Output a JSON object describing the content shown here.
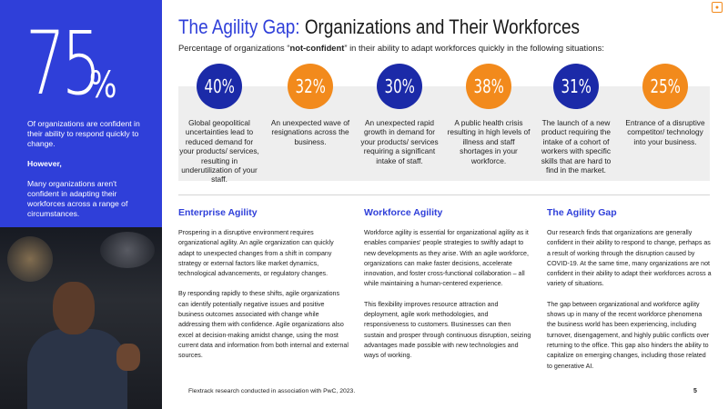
{
  "left": {
    "big_number": "75",
    "big_percent": "%",
    "p1": "Of organizations are confident in their ability to respond quickly to change.",
    "however": "However,",
    "p2": "Many organizations aren't confident in adapting their workforces across a range of circumstances."
  },
  "header": {
    "title_highlight": "The Agility Gap:",
    "title_rest": " Organizations and Their Workforces",
    "subtitle_before": "Percentage of organizations “",
    "subtitle_bold": "not-confident",
    "subtitle_after": "” in their ability to adapt workforces quickly in the following situations:"
  },
  "stats": [
    {
      "value": "40%",
      "color": "#1b2aa8",
      "desc": "Global geopolitical uncertainties lead to reduced demand for your products/ services, resulting in underutilization of your staff."
    },
    {
      "value": "32%",
      "color": "#f28a1c",
      "desc": "An unexpected wave of resignations across the business."
    },
    {
      "value": "30%",
      "color": "#1b2aa8",
      "desc": "An unexpected rapid growth in demand for your products/ services requiring a significant intake of staff."
    },
    {
      "value": "38%",
      "color": "#f28a1c",
      "desc": "A public health crisis resulting in high levels of illness and staff shortages in your workforce."
    },
    {
      "value": "31%",
      "color": "#1b2aa8",
      "desc": "The launch of a new product requiring the intake of a cohort of workers with specific skills that are hard to find in the market."
    },
    {
      "value": "25%",
      "color": "#f28a1c",
      "desc": "Entrance of a disruptive competitor/ technology into your business."
    }
  ],
  "columns": [
    {
      "heading": "Enterprise Agility",
      "p1": "Prospering in a disruptive environment requires organizational agility. An agile organization can quickly adapt to unexpected changes from a shift in company strategy or external factors like market dynamics, technological advancements, or regulatory changes.",
      "p2": "By responding rapidly to these shifts, agile organizations can identify potentially negative issues and positive business outcomes associated with change while addressing them with confidence. Agile organizations also excel at decision-making amidst change, using the most current data and information from both internal and external sources."
    },
    {
      "heading": "Workforce Agility",
      "p1": "Workforce agility is essential for organizational agility as it enables companies' people strategies to swiftly adapt to new developments as they arise. With an agile workforce, organizations can make faster decisions, accelerate innovation, and foster cross-functional collaboration – all while maintaining a human-centered experience.",
      "p2": "This flexibility improves resource attraction and deployment, agile work methodologies, and responsiveness to customers. Businesses can then sustain and prosper through continuous disruption, seizing advantages made possible with new technologies and ways of working."
    },
    {
      "heading": "The Agility Gap",
      "p1": "Our research finds that organizations are generally confident in their ability to respond to change, perhaps as a result of working through the disruption caused by COVID-19. At the same time, many organizations are not confident in their ability to adapt their workforces across a variety of situations.",
      "p2": "The gap between organizational and workforce agility shows up in many of the recent workforce phenomena the business world has been experiencing, including turnover, disengagement, and highly public conflicts over returning to the office. This gap also hinders the ability to capitalize on emerging changes, including those related to generative AI."
    }
  ],
  "footer": {
    "source": "Flextrack research conducted in association with PwC, 2023.",
    "page": "5"
  },
  "icons": {
    "corner": "app-icon",
    "photo": "presenter-photo"
  }
}
